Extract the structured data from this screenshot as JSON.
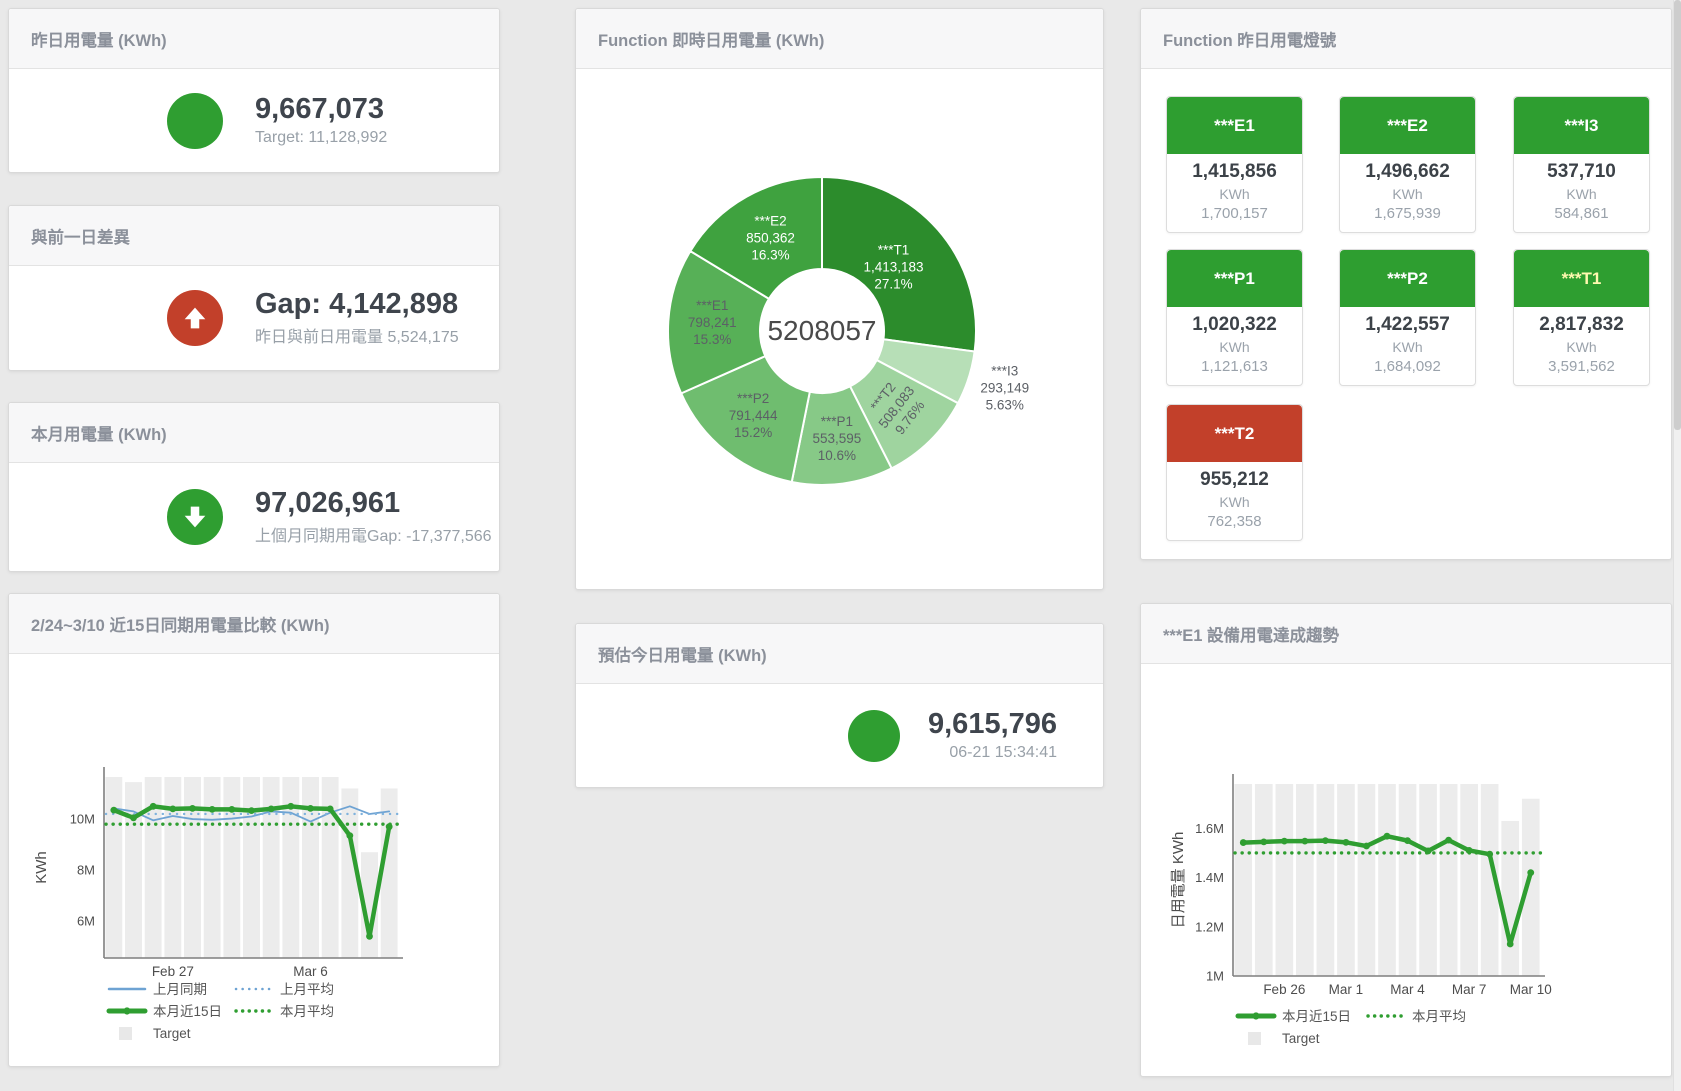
{
  "colors": {
    "green": "#2f9e31",
    "red": "#c2402a",
    "blue": "#6ea3d3",
    "blue_dotted": "#7fb2dd",
    "target_bar": "#ececec",
    "text_dark": "#3f454d",
    "text_gray": "#98a0a8",
    "title_gray": "#8b909a"
  },
  "stat_cards": {
    "yesterday": {
      "title": "昨日用電量 (KWh)",
      "value": "9,667,073",
      "sub": "Target: 11,128,992",
      "icon": "circle",
      "icon_color": "#2f9e31"
    },
    "diff": {
      "title": "與前一日差異",
      "value": "Gap: 4,142,898",
      "sub": "昨日與前日用電量 5,524,175",
      "icon": "up-arrow",
      "icon_color": "#c2402a"
    },
    "month": {
      "title": "本月用電量 (KWh)",
      "value": "97,026,961",
      "sub": "上個月同期用電Gap: -17,377,566",
      "icon": "down-arrow",
      "icon_color": "#2f9e31"
    },
    "estimate": {
      "title": "預估今日用電量 (KWh)",
      "value": "9,615,796",
      "sub": "06-21 15:34:41",
      "icon": "circle",
      "icon_color": "#2f9e31"
    }
  },
  "donut": {
    "title": "Function 即時日用電量 (KWh)",
    "center_value": "5208057",
    "slices": [
      {
        "name": "***T1",
        "value": "1,413,183",
        "pct_label": "27.1%",
        "pct": 27.1,
        "color": "#2c8c2c",
        "label_color": "#ffffff",
        "label_r": 95
      },
      {
        "name": "***I3",
        "value": "293,149",
        "pct_label": "5.63%",
        "pct": 5.63,
        "color": "#b7dfb7",
        "label_color": "#5c6066",
        "outside": true,
        "label_r": 192
      },
      {
        "name": "***T2",
        "value": "508,083",
        "pct_label": "9.76%",
        "pct": 9.76,
        "color": "#9fd49f",
        "label_color": "#5c6066",
        "rotate": -52,
        "label_r": 108
      },
      {
        "name": "***P1",
        "value": "553,595",
        "pct_label": "10.6%",
        "pct": 10.6,
        "color": "#87c987",
        "label_color": "#5c6066",
        "label_r": 110
      },
      {
        "name": "***P2",
        "value": "791,444",
        "pct_label": "15.2%",
        "pct": 15.2,
        "color": "#6fbd6f",
        "label_color": "#5c6066",
        "label_r": 110
      },
      {
        "name": "***E1",
        "value": "798,241",
        "pct_label": "15.3%",
        "pct": 15.3,
        "color": "#57b057",
        "label_color": "#5c6066",
        "label_r": 110
      },
      {
        "name": "***E2",
        "value": "850,362",
        "pct_label": "16.3%",
        "pct": 16.3,
        "color": "#3fa23f",
        "label_color": "#ffffff",
        "label_r": 105
      }
    ]
  },
  "lights": {
    "title": "Function 昨日用電燈號",
    "unit": "KWh",
    "tiles": [
      {
        "name": "***E1",
        "value": "1,415,856",
        "target": "1,700,157",
        "header_bg": "#2e9e30",
        "header_color": "#ffffff"
      },
      {
        "name": "***E2",
        "value": "1,496,662",
        "target": "1,675,939",
        "header_bg": "#2e9e30",
        "header_color": "#ffffff"
      },
      {
        "name": "***I3",
        "value": "537,710",
        "target": "584,861",
        "header_bg": "#2e9e30",
        "header_color": "#ffffff"
      },
      {
        "name": "***P1",
        "value": "1,020,322",
        "target": "1,121,613",
        "header_bg": "#2e9e30",
        "header_color": "#ffffff"
      },
      {
        "name": "***P2",
        "value": "1,422,557",
        "target": "1,684,092",
        "header_bg": "#2e9e30",
        "header_color": "#ffffff"
      },
      {
        "name": "***T1",
        "value": "2,817,832",
        "target": "3,591,562",
        "header_bg": "#2e9e30",
        "header_color": "#fff9b0"
      },
      {
        "name": "***T2",
        "value": "955,212",
        "target": "762,358",
        "header_bg": "#c2402a",
        "header_color": "#ffffff"
      }
    ]
  },
  "chart_data": [
    {
      "id": "compare15",
      "type": "line",
      "title": "2/24~3/10 近15日同期用電量比較 (KWh)",
      "ylabel": "KWh",
      "unit": "M KWh",
      "ylim": [
        4.55,
        11.65
      ],
      "yticks": [
        {
          "v": 6,
          "label": "6M"
        },
        {
          "v": 8,
          "label": "8M"
        },
        {
          "v": 10,
          "label": "10M"
        }
      ],
      "xticks": [
        {
          "i": 3,
          "label": "Feb 27"
        },
        {
          "i": 10,
          "label": "Mar 6"
        }
      ],
      "target_bars": {
        "name": "Target",
        "color": "#ececec",
        "values": [
          11.65,
          11.45,
          11.65,
          11.65,
          11.65,
          11.65,
          11.65,
          11.65,
          11.65,
          11.65,
          11.65,
          11.65,
          11.2,
          8.7,
          11.2
        ]
      },
      "series": [
        {
          "name": "上月同期",
          "type": "line",
          "color": "#6ea3d3",
          "width": 1.8,
          "values": [
            10.42,
            10.3,
            9.95,
            10.12,
            10.0,
            9.97,
            10.02,
            10.1,
            10.3,
            10.25,
            9.9,
            10.25,
            10.5,
            10.2,
            10.3
          ]
        },
        {
          "name": "上月平均",
          "type": "dotted",
          "color": "#7fb2dd",
          "width": 2.4,
          "value": 10.2
        },
        {
          "name": "本月近15日",
          "type": "line",
          "color": "#2f9e31",
          "width": 4.5,
          "markers": true,
          "values": [
            10.35,
            10.05,
            10.5,
            10.4,
            10.42,
            10.38,
            10.38,
            10.33,
            10.4,
            10.5,
            10.42,
            10.4,
            9.35,
            5.4,
            9.7
          ]
        },
        {
          "name": "本月平均",
          "type": "dotted",
          "color": "#2f9e31",
          "width": 3.4,
          "value": 9.8
        }
      ],
      "legend_rows": [
        [
          {
            "label": "上月同期",
            "swatch": "line-blue"
          },
          {
            "label": "上月平均",
            "swatch": "dotted-blue"
          }
        ],
        [
          {
            "label": "本月近15日",
            "swatch": "line-green"
          },
          {
            "label": "本月平均",
            "swatch": "dotted-green"
          }
        ],
        [
          {
            "label": "Target",
            "swatch": "square-gray"
          }
        ]
      ]
    },
    {
      "id": "e1trend",
      "type": "line",
      "title": "***E1 設備用電達成趨勢",
      "ylabel": "日用電量 KWh",
      "unit": "M KWh",
      "ylim": [
        1.0,
        1.78
      ],
      "yticks": [
        {
          "v": 1,
          "label": "1M"
        },
        {
          "v": 1.2,
          "label": "1.2M"
        },
        {
          "v": 1.4,
          "label": "1.4M"
        },
        {
          "v": 1.6,
          "label": "1.6M"
        }
      ],
      "xticks": [
        {
          "i": 2,
          "label": "Feb 26"
        },
        {
          "i": 5,
          "label": "Mar 1"
        },
        {
          "i": 8,
          "label": "Mar 4"
        },
        {
          "i": 11,
          "label": "Mar 7"
        },
        {
          "i": 14,
          "label": "Mar 10"
        }
      ],
      "target_bars": {
        "name": "Target",
        "color": "#ececec",
        "values": [
          1.78,
          1.78,
          1.78,
          1.78,
          1.78,
          1.78,
          1.78,
          1.78,
          1.78,
          1.78,
          1.78,
          1.78,
          1.78,
          1.63,
          1.72
        ]
      },
      "series": [
        {
          "name": "本月近15日",
          "type": "line",
          "color": "#2f9e31",
          "width": 4.5,
          "markers": true,
          "values": [
            1.542,
            1.545,
            1.548,
            1.548,
            1.55,
            1.543,
            1.528,
            1.568,
            1.55,
            1.508,
            1.552,
            1.51,
            1.495,
            1.13,
            1.42
          ]
        },
        {
          "name": "本月平均",
          "type": "dotted",
          "color": "#2f9e31",
          "width": 3.4,
          "value": 1.5
        }
      ],
      "legend_rows": [
        [
          {
            "label": "本月近15日",
            "swatch": "line-green"
          },
          {
            "label": "本月平均",
            "swatch": "dotted-green"
          }
        ],
        [
          {
            "label": "Target",
            "swatch": "square-gray"
          }
        ]
      ]
    }
  ]
}
